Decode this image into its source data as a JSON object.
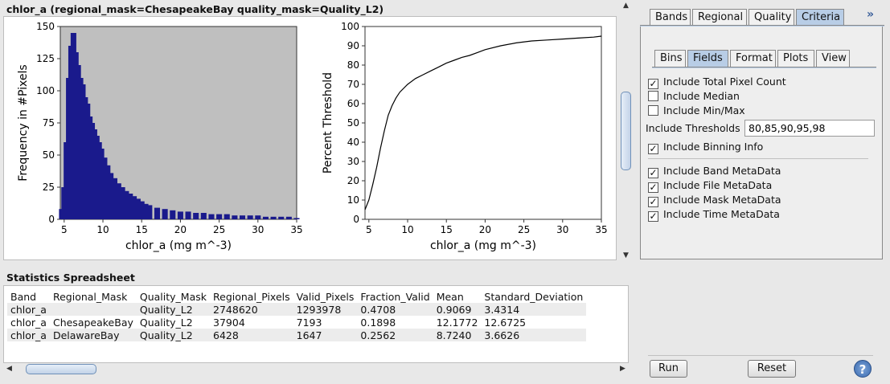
{
  "plot_title": "chlor_a (regional_mask=ChesapeakeBay quality_mask=Quality_L2)",
  "chart_data": [
    {
      "type": "bar",
      "ylabel": "Frequency in #Pixels",
      "xlabel": "chlor_a (mg m^-3)",
      "xlim": [
        4.5,
        35
      ],
      "ylim": [
        0,
        150
      ],
      "xticks": [
        "5",
        "10",
        "15",
        "20",
        "25",
        "30",
        "35"
      ],
      "yticks": [
        "0",
        "25",
        "50",
        "75",
        "100",
        "125",
        "150"
      ],
      "background": "#bfbfbf",
      "bar_color": "#1a1a8c",
      "x": [
        4.7,
        5.0,
        5.3,
        5.6,
        5.9,
        6.2,
        6.5,
        6.8,
        7.1,
        7.4,
        7.7,
        8.0,
        8.3,
        8.6,
        8.9,
        9.2,
        9.5,
        9.8,
        10.2,
        10.6,
        11.0,
        11.5,
        12.0,
        12.5,
        13.0,
        13.5,
        14.0,
        14.5,
        15.0,
        15.5,
        16.0,
        17.0,
        18.0,
        19.0,
        20.0,
        21.0,
        22.0,
        23.0,
        24.0,
        25.0,
        26.0,
        27.0,
        28.0,
        29.0,
        30.0,
        31.0,
        32.0,
        33.0,
        34.0,
        35.0
      ],
      "values": [
        8,
        25,
        60,
        110,
        135,
        145,
        130,
        120,
        110,
        105,
        95,
        90,
        80,
        75,
        70,
        65,
        60,
        55,
        48,
        42,
        36,
        32,
        28,
        25,
        22,
        20,
        18,
        16,
        14,
        12,
        11,
        9,
        8,
        7,
        6,
        6,
        5,
        5,
        4,
        4,
        4,
        3,
        3,
        3,
        3,
        2,
        2,
        2,
        2,
        1
      ]
    },
    {
      "type": "line",
      "ylabel": "Percent Threshold",
      "xlabel": "chlor_a (mg m^-3)",
      "xlim": [
        4.5,
        35
      ],
      "ylim": [
        0,
        100
      ],
      "xticks": [
        "5",
        "10",
        "15",
        "20",
        "25",
        "30",
        "35"
      ],
      "yticks": [
        "0",
        "10",
        "20",
        "30",
        "40",
        "50",
        "60",
        "70",
        "80",
        "90",
        "100"
      ],
      "x": [
        4.5,
        5,
        5.5,
        6,
        6.5,
        7,
        7.5,
        8,
        8.5,
        9,
        10,
        11,
        12,
        13,
        14,
        15,
        16,
        17,
        18,
        19,
        20,
        22,
        24,
        26,
        28,
        30,
        32,
        34,
        35
      ],
      "y": [
        5,
        10,
        18,
        27,
        37,
        46,
        54,
        59,
        63,
        66,
        70,
        73,
        75,
        77,
        79,
        81,
        82.5,
        84,
        85,
        86.5,
        88,
        90,
        91.5,
        92.5,
        93,
        93.5,
        94,
        94.5,
        95
      ]
    }
  ],
  "stats_label": "Statistics Spreadsheet",
  "table": {
    "headers": [
      "Band",
      "Regional_Mask",
      "Quality_Mask",
      "Regional_Pixels",
      "Valid_Pixels",
      "Fraction_Valid",
      "Mean",
      "Standard_Deviation"
    ],
    "rows": [
      [
        "chlor_a",
        "",
        "Quality_L2",
        "2748620",
        "1293978",
        "0.4708",
        "0.9069",
        "3.4314"
      ],
      [
        "chlor_a",
        "ChesapeakeBay",
        "Quality_L2",
        "37904",
        "7193",
        "0.1898",
        "12.1772",
        "12.6725"
      ],
      [
        "chlor_a",
        "DelawareBay",
        "Quality_L2",
        "6428",
        "1647",
        "0.2562",
        "8.7240",
        "3.6626"
      ]
    ]
  },
  "outer_tabs": [
    "Bands",
    "Regional",
    "Quality",
    "Criteria"
  ],
  "inner_tabs": [
    "Bins",
    "Fields",
    "Format",
    "Plots",
    "View"
  ],
  "fields": {
    "total_pixel_count": {
      "label": "Include Total Pixel Count",
      "checked": true
    },
    "median": {
      "label": "Include Median",
      "checked": false
    },
    "minmax": {
      "label": "Include Min/Max",
      "checked": false
    },
    "thresholds_label": "Include Thresholds",
    "thresholds_value": "80,85,90,95,98",
    "binning_info": {
      "label": "Include Binning Info",
      "checked": true
    },
    "band_metadata": {
      "label": "Include Band MetaData",
      "checked": true
    },
    "file_metadata": {
      "label": "Include File MetaData",
      "checked": true
    },
    "mask_metadata": {
      "label": "Include Mask MetaData",
      "checked": true
    },
    "time_metadata": {
      "label": "Include Time MetaData",
      "checked": true
    }
  },
  "buttons": {
    "run": "Run",
    "reset": "Reset",
    "help": "?",
    "more": "»"
  }
}
